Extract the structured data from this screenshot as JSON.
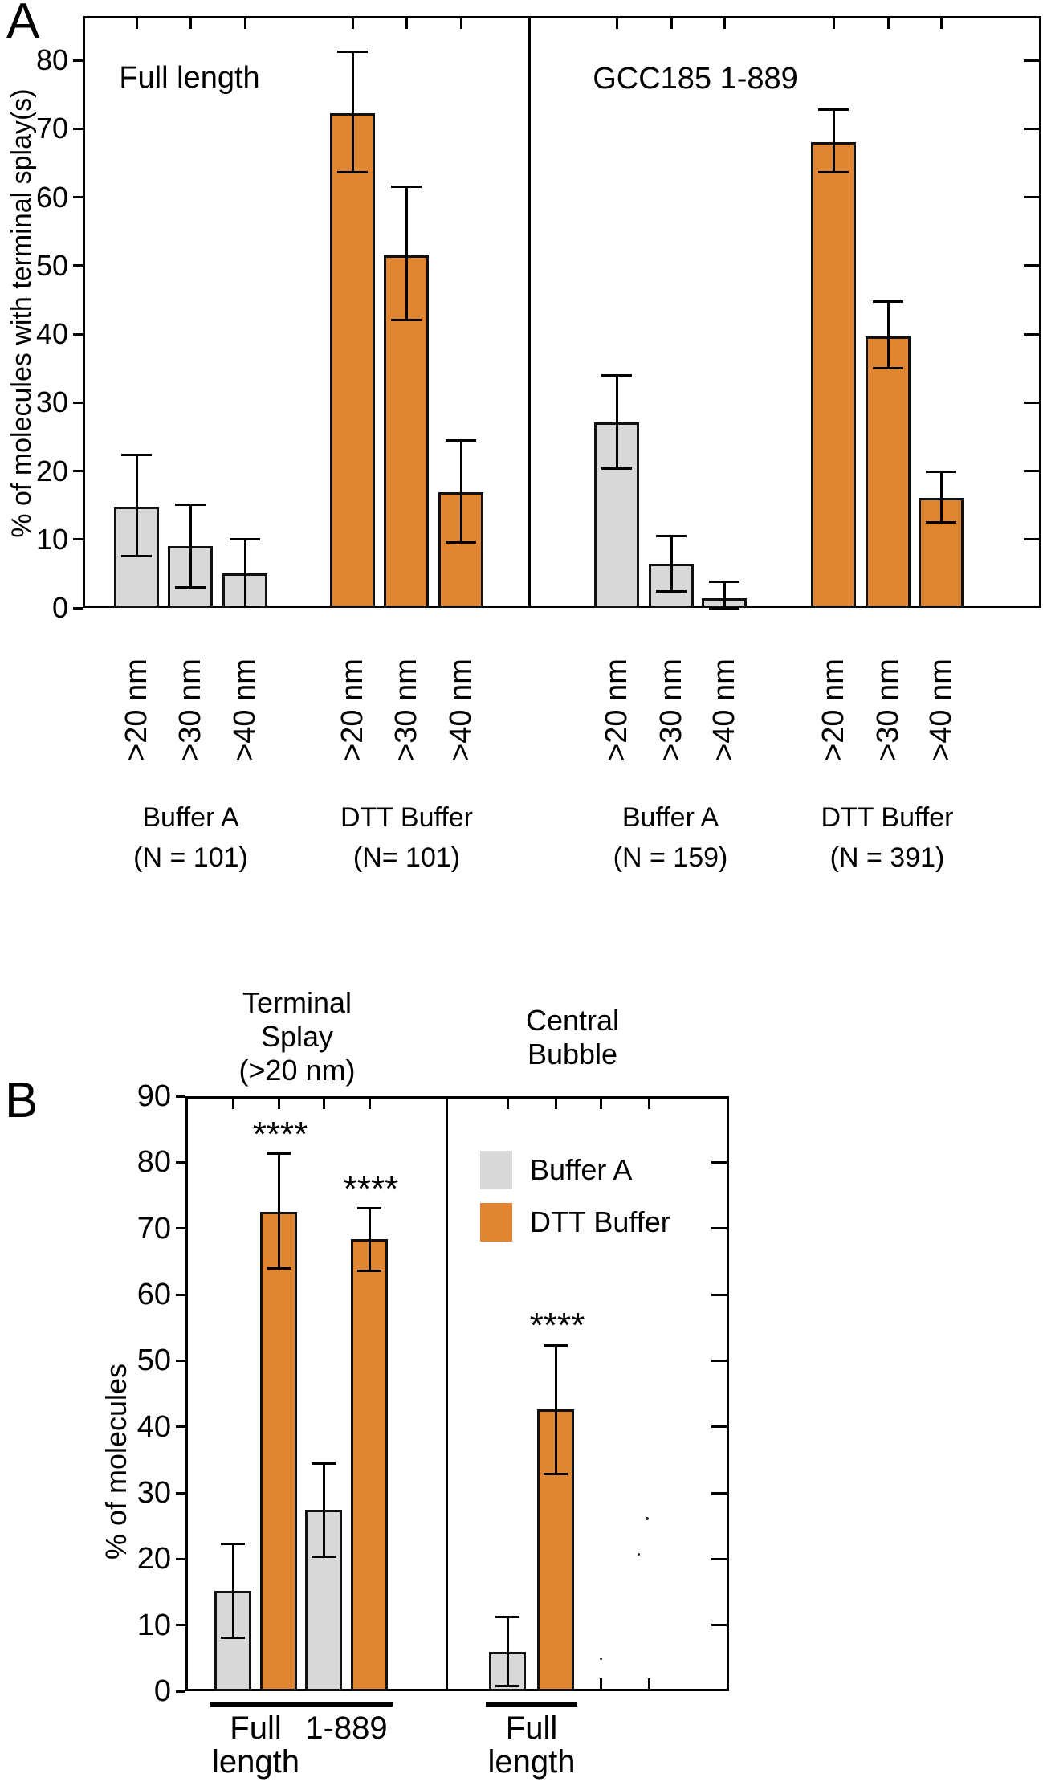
{
  "figure": {
    "panel_a_letter": "A",
    "panel_b_letter": "B"
  },
  "colors": {
    "buffer_a_fill": "#D8D8D8",
    "dtt_fill": "#E08632",
    "bar_border": "#111111",
    "axis": "#000000"
  },
  "chart_data": [
    {
      "id": "panel-a",
      "type": "bar",
      "panel_letter": "A",
      "section_titles": [
        "Full length",
        "GCC185 1-889"
      ],
      "ylabel": "% of molecules with terminal splay(s)",
      "ylim": [
        0,
        86
      ],
      "yticks": [
        0,
        10,
        20,
        30,
        40,
        50,
        60,
        70,
        80
      ],
      "grid": false,
      "bins": [
        ">20 nm",
        ">30 nm",
        ">40 nm"
      ],
      "groups": [
        {
          "section": "Full length",
          "series": "Buffer A",
          "label": [
            "Buffer A",
            "(N = 101)"
          ],
          "values": [
            14.8,
            9.0,
            5.0
          ],
          "err_low": [
            7.6,
            3.0,
            0.2
          ],
          "err_high": [
            22.3,
            15.1,
            10.0
          ]
        },
        {
          "section": "Full length",
          "series": "DTT Buffer",
          "label": [
            "DTT Buffer",
            "(N= 101)"
          ],
          "values": [
            72.3,
            51.5,
            16.9
          ],
          "err_low": [
            63.6,
            42.0,
            9.6
          ],
          "err_high": [
            81.2,
            61.5,
            24.5
          ]
        },
        {
          "section": "GCC185 1-889",
          "series": "Buffer A",
          "label": [
            "Buffer A",
            "(N = 159)"
          ],
          "values": [
            27.1,
            6.4,
            1.4
          ],
          "err_low": [
            20.3,
            2.4,
            0.0
          ],
          "err_high": [
            34.0,
            10.5,
            3.8
          ]
        },
        {
          "section": "GCC185 1-889",
          "series": "DTT Buffer",
          "label": [
            "DTT Buffer",
            "(N = 391)"
          ],
          "values": [
            68.0,
            39.7,
            16.1
          ],
          "err_low": [
            63.6,
            35.0,
            12.5
          ],
          "err_high": [
            72.8,
            44.7,
            19.9
          ]
        }
      ]
    },
    {
      "id": "panel-b",
      "type": "bar",
      "panel_letter": "B",
      "section_titles": [
        [
          "Terminal",
          "Splay",
          "(>20 nm)"
        ],
        [
          "Central",
          "Bubble"
        ]
      ],
      "ylabel": "% of molecules",
      "ylim": [
        0,
        90
      ],
      "yticks": [
        0,
        10,
        20,
        30,
        40,
        50,
        60,
        70,
        80,
        90
      ],
      "grid": false,
      "legend": [
        {
          "label": "Buffer A",
          "series": "Buffer A"
        },
        {
          "label": "DTT Buffer",
          "series": "DTT Buffer"
        }
      ],
      "groups": [
        {
          "label": [
            "Full",
            "length"
          ],
          "bars": [
            {
              "series": "Buffer A",
              "value": 15.2,
              "err_low": 8.1,
              "err_high": 22.3
            },
            {
              "series": "DTT Buffer",
              "value": 72.5,
              "err_low": 63.9,
              "err_high": 81.3,
              "sig": "****"
            }
          ]
        },
        {
          "label": [
            "1-889"
          ],
          "bars": [
            {
              "series": "Buffer A",
              "value": 27.4,
              "err_low": 20.4,
              "err_high": 34.4
            },
            {
              "series": "DTT Buffer",
              "value": 68.4,
              "err_low": 63.6,
              "err_high": 73.0,
              "sig": "****"
            }
          ]
        },
        {
          "label": [
            "Full",
            "length"
          ],
          "bars": [
            {
              "series": "Buffer A",
              "value": 6.0,
              "err_low": 0.8,
              "err_high": 11.2
            },
            {
              "series": "DTT Buffer",
              "value": 42.6,
              "err_low": 32.9,
              "err_high": 52.3,
              "sig": "****"
            }
          ]
        }
      ]
    }
  ]
}
